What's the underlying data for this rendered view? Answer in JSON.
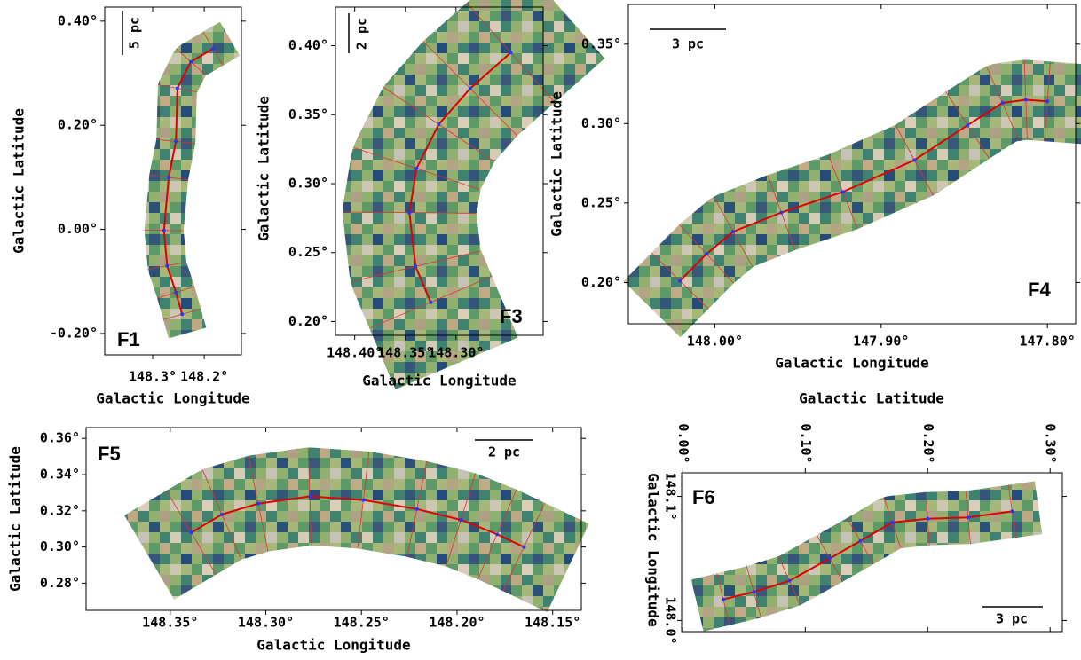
{
  "chart_data": [
    {
      "type": "map",
      "panel": "F1",
      "xlabel": "Galactic Longitude",
      "ylabel": "Galactic Latitude",
      "scalebar": "5 pc",
      "xlim": [
        148.393,
        148.128
      ],
      "ylim": [
        -0.241,
        0.427
      ],
      "xticks": [
        {
          "value": 148.3,
          "label": "148.3°"
        },
        {
          "value": 148.2,
          "label": "148.2°"
        }
      ],
      "yticks": [
        {
          "value": -0.2,
          "label": "-0.20°"
        },
        {
          "value": 0.0,
          "label": "0.00°"
        },
        {
          "value": 0.2,
          "label": "0.20°"
        },
        {
          "value": 0.4,
          "label": "0.40°"
        }
      ],
      "x": [
        148.183,
        148.226,
        148.252,
        148.255,
        148.269,
        148.278,
        148.272,
        148.255,
        148.243
      ],
      "y": [
        0.347,
        0.322,
        0.271,
        0.169,
        0.1,
        -0.002,
        -0.07,
        -0.121,
        -0.163
      ]
    },
    {
      "type": "map",
      "panel": "F3",
      "xlabel": "Galactic Longitude",
      "ylabel": "Galactic Latitude",
      "scalebar": "2 pc",
      "xlim": [
        148.419,
        148.214
      ],
      "ylim": [
        0.19,
        0.428
      ],
      "xticks": [
        {
          "value": 148.4,
          "label": "148.40°"
        },
        {
          "value": 148.35,
          "label": "148.35°"
        },
        {
          "value": 148.3,
          "label": "148.30°"
        }
      ],
      "yticks": [
        {
          "value": 0.2,
          "label": "0.20°"
        },
        {
          "value": 0.25,
          "label": "0.25°"
        },
        {
          "value": 0.3,
          "label": "0.30°"
        },
        {
          "value": 0.35,
          "label": "0.35°"
        },
        {
          "value": 0.4,
          "label": "0.40°"
        }
      ],
      "x": [
        148.325,
        148.34,
        148.346,
        148.339,
        148.317,
        148.286,
        148.246
      ],
      "y": [
        0.214,
        0.24,
        0.279,
        0.311,
        0.343,
        0.369,
        0.395
      ]
    },
    {
      "type": "map",
      "panel": "F4",
      "xlabel": "Galactic Longitude",
      "ylabel": "Galactic Latitude",
      "scalebar": "3 pc",
      "xlim": [
        148.052,
        147.783
      ],
      "ylim": [
        0.174,
        0.375
      ],
      "xticks": [
        {
          "value": 148.0,
          "label": "148.00°"
        },
        {
          "value": 147.9,
          "label": "147.90°"
        },
        {
          "value": 147.8,
          "label": "147.80°"
        }
      ],
      "yticks": [
        {
          "value": 0.2,
          "label": "0.20°"
        },
        {
          "value": 0.25,
          "label": "0.25°"
        },
        {
          "value": 0.3,
          "label": "0.30°"
        },
        {
          "value": 0.35,
          "label": "0.35°"
        }
      ],
      "x": [
        148.021,
        148.005,
        147.989,
        147.96,
        147.923,
        147.88,
        147.848,
        147.827,
        147.813,
        147.8
      ],
      "y": [
        0.201,
        0.218,
        0.232,
        0.244,
        0.257,
        0.277,
        0.299,
        0.313,
        0.315,
        0.314
      ]
    },
    {
      "type": "map",
      "panel": "F5",
      "xlabel": "Galactic Longitude",
      "ylabel": "Galactic Latitude",
      "scalebar": "2 pc",
      "xlim": [
        148.394,
        148.135
      ],
      "ylim": [
        0.265,
        0.366
      ],
      "xticks": [
        {
          "value": 148.35,
          "label": "148.35°"
        },
        {
          "value": 148.3,
          "label": "148.30°"
        },
        {
          "value": 148.25,
          "label": "148.25°"
        },
        {
          "value": 148.2,
          "label": "148.20°"
        },
        {
          "value": 148.15,
          "label": "148.15°"
        }
      ],
      "yticks": [
        {
          "value": 0.28,
          "label": "0.28°"
        },
        {
          "value": 0.3,
          "label": "0.30°"
        },
        {
          "value": 0.32,
          "label": "0.32°"
        },
        {
          "value": 0.34,
          "label": "0.34°"
        },
        {
          "value": 0.36,
          "label": "0.36°"
        }
      ],
      "x": [
        148.339,
        148.323,
        148.304,
        148.277,
        148.249,
        148.221,
        148.198,
        148.179,
        148.165
      ],
      "y": [
        0.308,
        0.318,
        0.324,
        0.328,
        0.326,
        0.321,
        0.315,
        0.307,
        0.3
      ]
    },
    {
      "type": "map",
      "panel": "F6",
      "xlabel": "Galactic Latitude",
      "ylabel": "Galactic Longitude",
      "scalebar": "3 pc",
      "xlim": [
        -0.001,
        0.31
      ],
      "ylim": [
        147.991,
        148.119
      ],
      "xticks": [
        {
          "value": 0.0,
          "label": "0.00°"
        },
        {
          "value": 0.1,
          "label": "0.10°"
        },
        {
          "value": 0.2,
          "label": "0.20°"
        },
        {
          "value": 0.3,
          "label": "0.30°"
        }
      ],
      "yticks": [
        {
          "value": 148.0,
          "label": "148.0°"
        },
        {
          "value": 148.1,
          "label": "148.1°"
        }
      ],
      "x": [
        0.033,
        0.058,
        0.087,
        0.12,
        0.145,
        0.171,
        0.2,
        0.233,
        0.269
      ],
      "y": [
        148.017,
        148.023,
        148.032,
        148.05,
        148.064,
        148.079,
        148.082,
        148.083,
        148.088
      ]
    }
  ]
}
